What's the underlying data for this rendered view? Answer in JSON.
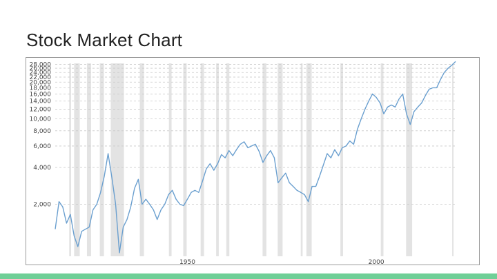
{
  "slide": {
    "title": "Stock Market Chart"
  },
  "colors": {
    "line": "#6a9fcf",
    "recession": "#e3e3e3",
    "grid": "#c9c9c9",
    "accent_bar": "#6fcf97"
  },
  "chart_data": {
    "type": "line",
    "title": "",
    "xlabel": "",
    "ylabel": "",
    "yscale": "log",
    "ylim": [
      750,
      28500
    ],
    "xlim": [
      1915,
      2021
    ],
    "grid": "horizontal dashed",
    "y_ticks": [
      2000,
      4000,
      6000,
      8000,
      10000,
      12000,
      14000,
      16000,
      18000,
      20000,
      22000,
      24000,
      26000,
      28000
    ],
    "y_tick_labels": [
      "2,000",
      "4,000",
      "6,000",
      "8,000",
      "10,000",
      "12,000",
      "14,000",
      "16,000",
      "18,000",
      "20,000",
      "22,000",
      "24,000",
      "26,000",
      "28,000"
    ],
    "x_ticks": [
      1950,
      2000
    ],
    "x_tick_labels": [
      "1950",
      "2000"
    ],
    "recessions": [
      [
        1918.7,
        1919.2
      ],
      [
        1920.0,
        1921.5
      ],
      [
        1923.4,
        1924.5
      ],
      [
        1926.8,
        1927.9
      ],
      [
        1929.7,
        1933.2
      ],
      [
        1937.4,
        1938.5
      ],
      [
        1945.1,
        1945.8
      ],
      [
        1948.9,
        1949.8
      ],
      [
        1953.5,
        1954.4
      ],
      [
        1957.6,
        1958.3
      ],
      [
        1960.3,
        1961.1
      ],
      [
        1969.9,
        1970.9
      ],
      [
        1973.9,
        1975.2
      ],
      [
        1980.0,
        1980.5
      ],
      [
        1981.5,
        1982.9
      ],
      [
        1990.5,
        1991.2
      ],
      [
        2001.2,
        2001.9
      ],
      [
        2007.9,
        2009.5
      ],
      [
        2020.1,
        2020.4
      ]
    ],
    "series": [
      {
        "values": [
          [
            1915,
            1250
          ],
          [
            1916,
            2100
          ],
          [
            1917,
            1900
          ],
          [
            1918,
            1400
          ],
          [
            1919,
            1650
          ],
          [
            1920,
            1100
          ],
          [
            1921,
            900
          ],
          [
            1922,
            1200
          ],
          [
            1923,
            1250
          ],
          [
            1924,
            1300
          ],
          [
            1925,
            1800
          ],
          [
            1926,
            2000
          ],
          [
            1927,
            2500
          ],
          [
            1928,
            3400
          ],
          [
            1929,
            5200
          ],
          [
            1930,
            3300
          ],
          [
            1931,
            2000
          ],
          [
            1932,
            800
          ],
          [
            1933,
            1300
          ],
          [
            1934,
            1500
          ],
          [
            1935,
            1900
          ],
          [
            1936,
            2700
          ],
          [
            1937,
            3200
          ],
          [
            1938,
            2000
          ],
          [
            1939,
            2200
          ],
          [
            1940,
            2000
          ],
          [
            1941,
            1800
          ],
          [
            1942,
            1500
          ],
          [
            1943,
            1800
          ],
          [
            1944,
            2000
          ],
          [
            1945,
            2400
          ],
          [
            1946,
            2600
          ],
          [
            1947,
            2200
          ],
          [
            1948,
            2000
          ],
          [
            1949,
            1950
          ],
          [
            1950,
            2200
          ],
          [
            1951,
            2500
          ],
          [
            1952,
            2600
          ],
          [
            1953,
            2500
          ],
          [
            1954,
            3100
          ],
          [
            1955,
            3900
          ],
          [
            1956,
            4300
          ],
          [
            1957,
            3800
          ],
          [
            1958,
            4300
          ],
          [
            1959,
            5100
          ],
          [
            1960,
            4800
          ],
          [
            1961,
            5500
          ],
          [
            1962,
            5000
          ],
          [
            1963,
            5600
          ],
          [
            1964,
            6200
          ],
          [
            1965,
            6500
          ],
          [
            1966,
            5800
          ],
          [
            1967,
            6000
          ],
          [
            1968,
            6200
          ],
          [
            1969,
            5400
          ],
          [
            1970,
            4400
          ],
          [
            1971,
            5000
          ],
          [
            1972,
            5500
          ],
          [
            1973,
            4800
          ],
          [
            1974,
            3000
          ],
          [
            1975,
            3300
          ],
          [
            1976,
            3600
          ],
          [
            1977,
            3000
          ],
          [
            1978,
            2800
          ],
          [
            1979,
            2600
          ],
          [
            1980,
            2500
          ],
          [
            1981,
            2400
          ],
          [
            1982,
            2100
          ],
          [
            1983,
            2800
          ],
          [
            1984,
            2800
          ],
          [
            1985,
            3400
          ],
          [
            1986,
            4200
          ],
          [
            1987,
            5200
          ],
          [
            1988,
            4800
          ],
          [
            1989,
            5600
          ],
          [
            1990,
            5000
          ],
          [
            1991,
            5800
          ],
          [
            1992,
            6000
          ],
          [
            1993,
            6600
          ],
          [
            1994,
            6200
          ],
          [
            1995,
            8200
          ],
          [
            1996,
            10000
          ],
          [
            1997,
            12000
          ],
          [
            1998,
            14000
          ],
          [
            1999,
            16000
          ],
          [
            2000,
            15000
          ],
          [
            2001,
            13500
          ],
          [
            2002,
            11000
          ],
          [
            2003,
            12500
          ],
          [
            2004,
            13000
          ],
          [
            2005,
            12500
          ],
          [
            2006,
            14500
          ],
          [
            2007,
            16000
          ],
          [
            2008,
            11000
          ],
          [
            2009,
            9000
          ],
          [
            2010,
            11500
          ],
          [
            2011,
            12500
          ],
          [
            2012,
            13500
          ],
          [
            2013,
            15500
          ],
          [
            2014,
            17500
          ],
          [
            2015,
            18000
          ],
          [
            2016,
            18000
          ],
          [
            2017,
            21000
          ],
          [
            2018,
            24000
          ],
          [
            2019,
            26000
          ],
          [
            2020,
            27500
          ],
          [
            2021,
            29500
          ]
        ]
      }
    ]
  }
}
